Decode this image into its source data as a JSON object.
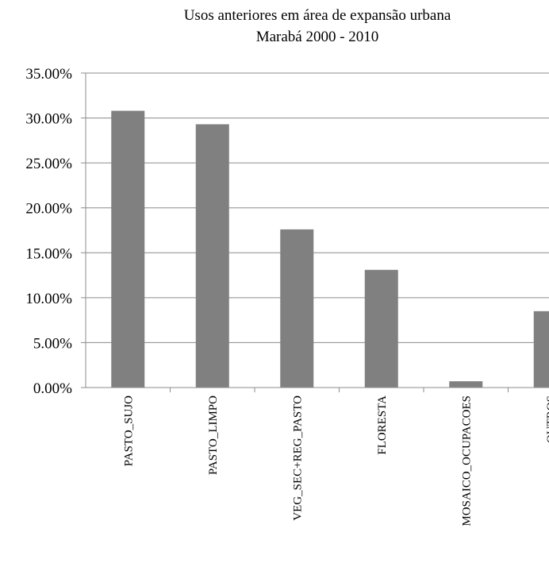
{
  "chart_data": {
    "type": "bar",
    "title": "Usos anteriores em área de expansão urbana",
    "subtitle": "Marabá 2000 - 2010",
    "categories": [
      "PASTO_SUJO",
      "PASTO_LIMPO",
      "VEG_SEC+REG_PASTO",
      "FLORESTA",
      "MOSAICO_OCUPACOES",
      "OUTROS"
    ],
    "values": [
      30.8,
      29.3,
      17.6,
      13.1,
      0.7,
      8.5
    ],
    "ylim": [
      0,
      35
    ],
    "yticks": [
      "0.00%",
      "5.00%",
      "10.00%",
      "15.00%",
      "20.00%",
      "25.00%",
      "30.00%",
      "35.00%"
    ],
    "grid": true,
    "legend": "none",
    "bar_color": "#808080"
  }
}
